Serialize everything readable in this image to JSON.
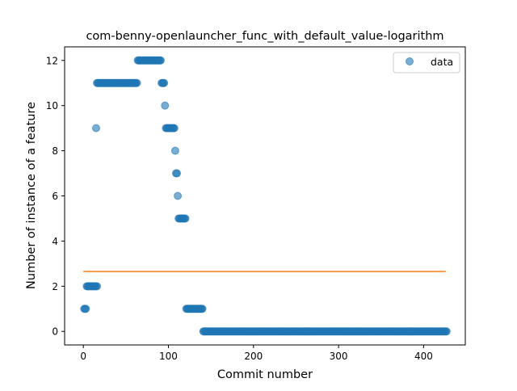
{
  "chart_data": {
    "type": "scatter",
    "title": "com-benny-openlauncher_func_with_default_value-logarithm",
    "xlabel": "Commit number",
    "ylabel": "Number of instance of a feature",
    "xlim": [
      -22,
      449
    ],
    "ylim": [
      -0.6,
      12.6
    ],
    "xticks": [
      0,
      100,
      200,
      300,
      400
    ],
    "yticks": [
      0,
      2,
      4,
      6,
      8,
      10,
      12
    ],
    "legend": {
      "placement": "top-right",
      "entries": [
        "data"
      ]
    },
    "grid": false,
    "colors": {
      "points": "#1f77b4",
      "fit_line": "#ff7f0e"
    },
    "series": [
      {
        "name": "data",
        "kind": "points",
        "runs": [
          {
            "x_start": 1,
            "x_end": 3,
            "y": 1
          },
          {
            "x_start": 4,
            "x_end": 16,
            "y": 2
          },
          {
            "x_start": 15,
            "x_end": 15,
            "y": 9
          },
          {
            "x_start": 16,
            "x_end": 63,
            "y": 11
          },
          {
            "x_start": 64,
            "x_end": 91,
            "y": 12
          },
          {
            "x_start": 92,
            "x_end": 95,
            "y": 11
          },
          {
            "x_start": 96,
            "x_end": 96,
            "y": 10
          },
          {
            "x_start": 97,
            "x_end": 107,
            "y": 9
          },
          {
            "x_start": 108,
            "x_end": 108,
            "y": 8
          },
          {
            "x_start": 109,
            "x_end": 110,
            "y": 7
          },
          {
            "x_start": 111,
            "x_end": 111,
            "y": 6
          },
          {
            "x_start": 112,
            "x_end": 120,
            "y": 5
          },
          {
            "x_start": 121,
            "x_end": 140,
            "y": 1
          },
          {
            "x_start": 141,
            "x_end": 427,
            "y": 0
          }
        ]
      },
      {
        "name": "",
        "kind": "line",
        "x": [
          0,
          426
        ],
        "y": [
          2.65,
          2.65
        ]
      }
    ]
  }
}
